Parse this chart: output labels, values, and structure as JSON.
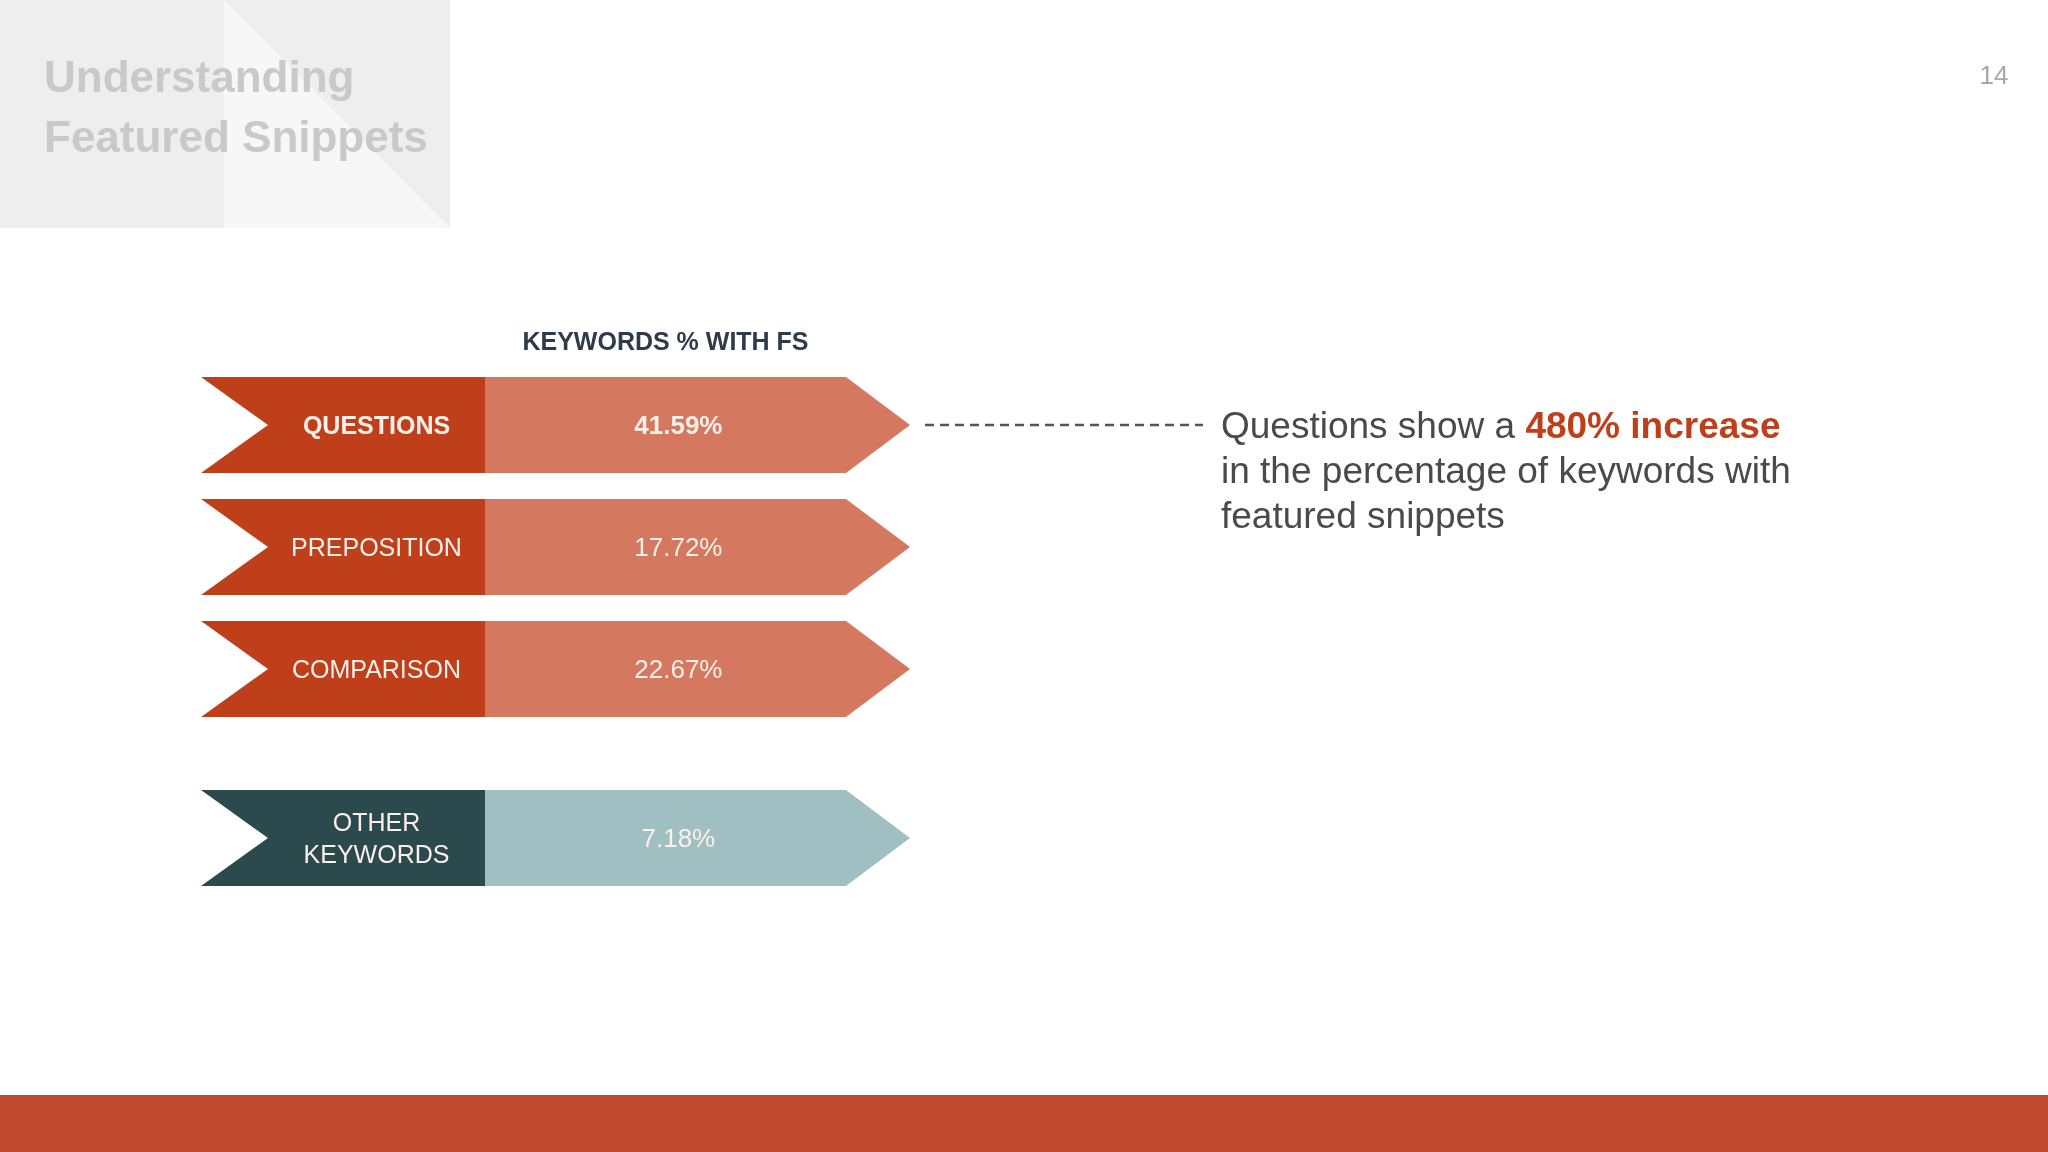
{
  "chart_data": {
    "type": "other",
    "title": "Understanding Featured Snippets",
    "subtitle": "KEYWORDS % WITH FS",
    "categories": [
      "QUESTIONS",
      "PREPOSITION",
      "COMPARISON",
      "OTHER KEYWORDS"
    ],
    "values": [
      41.59,
      17.72,
      22.67,
      7.18
    ],
    "value_labels": [
      "41.59%",
      "17.72%",
      "22.67%",
      "7.18%"
    ],
    "colors": [
      "#d4785f",
      "#d4785f",
      "#d4785f",
      "#a0bfc3"
    ],
    "annotations": [
      {
        "text": "Questions show a 480% increase in the percentage of keywords with featured snippets",
        "x": "QUESTIONS"
      },
      "14"
    ]
  }
}
